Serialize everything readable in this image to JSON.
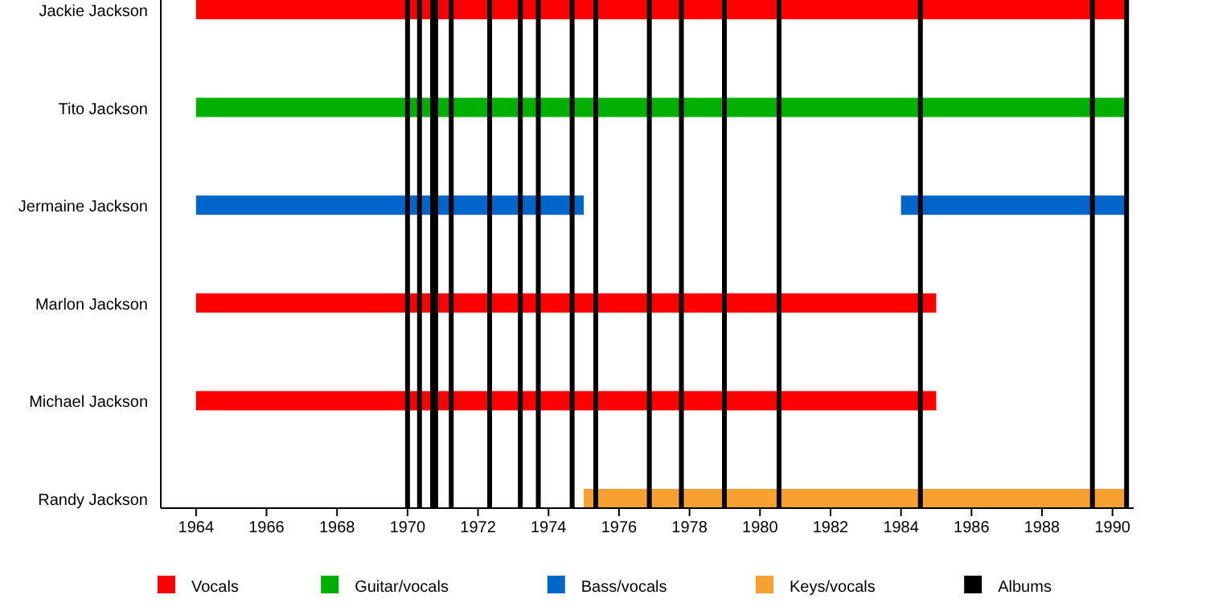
{
  "chart_data": {
    "type": "bar",
    "orientation": "horizontal",
    "categories": [
      "Jackie Jackson",
      "Tito Jackson",
      "Jermaine Jackson",
      "Marlon Jackson",
      "Michael Jackson",
      "Randy Jackson"
    ],
    "series": [
      {
        "name": "Vocals",
        "color": "#ff0000",
        "base": [
          1964,
          null,
          null,
          1964,
          1964,
          null
        ],
        "values": [
          26.4,
          null,
          null,
          21,
          21,
          null
        ]
      },
      {
        "name": "Guitar/vocals",
        "color": "#00b000",
        "base": [
          null,
          1964,
          null,
          null,
          null,
          null
        ],
        "values": [
          null,
          26.4,
          null,
          null,
          null,
          null
        ]
      },
      {
        "name": "Bass/vocals",
        "color": "#0066cc",
        "base": [
          null,
          null,
          1964,
          null,
          null,
          null
        ],
        "values": [
          null,
          null,
          11,
          null,
          null,
          null
        ]
      },
      {
        "color": "#0066cc",
        "base": [
          null,
          null,
          1984,
          null,
          null,
          null
        ],
        "values": [
          null,
          null,
          6.4,
          null,
          null,
          null
        ]
      },
      {
        "name": "Keys/vocals",
        "color": "#f8a030",
        "base": [
          null,
          null,
          null,
          null,
          null,
          1975
        ],
        "values": [
          null,
          null,
          null,
          null,
          null,
          15.4
        ]
      }
    ],
    "xlim": [
      1963,
      1990.6
    ],
    "xticks": [
      1964,
      1966,
      1968,
      1970,
      1972,
      1974,
      1976,
      1978,
      1980,
      1982,
      1984,
      1986,
      1988,
      1990
    ],
    "ref_lines": [
      {
        "axis": "x",
        "value": 1970,
        "label": "Albums",
        "color": "#000000"
      },
      {
        "axis": "x",
        "value": 1970.34,
        "color": "#000000"
      },
      {
        "axis": "x",
        "value": 1970.71,
        "color": "#000000"
      },
      {
        "axis": "x",
        "value": 1970.8,
        "color": "#000000"
      },
      {
        "axis": "x",
        "value": 1971.24,
        "color": "#000000"
      },
      {
        "axis": "x",
        "value": 1972.33,
        "color": "#000000"
      },
      {
        "axis": "x",
        "value": 1973.2,
        "color": "#000000"
      },
      {
        "axis": "x",
        "value": 1973.71,
        "color": "#000000"
      },
      {
        "axis": "x",
        "value": 1974.67,
        "color": "#000000"
      },
      {
        "axis": "x",
        "value": 1975.34,
        "color": "#000000"
      },
      {
        "axis": "x",
        "value": 1976.86,
        "color": "#000000"
      },
      {
        "axis": "x",
        "value": 1977.77,
        "color": "#000000"
      },
      {
        "axis": "x",
        "value": 1978.99,
        "color": "#000000"
      },
      {
        "axis": "x",
        "value": 1980.54,
        "color": "#000000"
      },
      {
        "axis": "x",
        "value": 1984.55,
        "color": "#000000"
      },
      {
        "axis": "x",
        "value": 1989.43,
        "color": "#000000"
      },
      {
        "axis": "x",
        "value": 1990.4,
        "color": "#000000"
      }
    ],
    "legend": "bottom"
  }
}
